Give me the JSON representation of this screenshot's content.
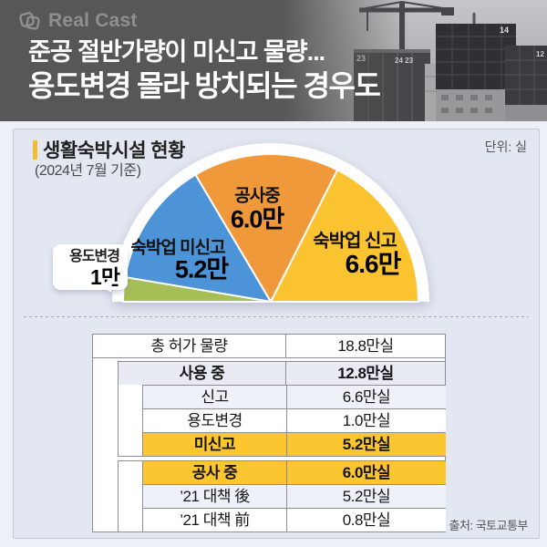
{
  "header": {
    "logo_text": "Real Cast",
    "title_line1": "준공 절반가량이 미신고 물량...",
    "title_line2": "용도변경 몰라 방치되는 경우도",
    "photo_numbers": [
      "23",
      "24 23",
      "14",
      "12"
    ]
  },
  "panel": {
    "title": "생활숙박시설 현황",
    "subtitle": "(2024년 7월 기준)",
    "unit_label": "단위: 실",
    "source": "출처: 국토교통부",
    "accent_color": "#f2bd2f"
  },
  "chart_data": {
    "type": "pie",
    "shape": "semicircle",
    "title": "생활숙박시설 현황 (2024년 7월 기준)",
    "unit": "만실",
    "total": 18.8,
    "legend_position": "labels-on-slices",
    "slices": [
      {
        "label": "숙박업 신고",
        "value": 6.6,
        "value_label": "6.6만",
        "color": "#FBC330"
      },
      {
        "label": "공사중",
        "value": 6.0,
        "value_label": "6.0만",
        "color": "#F0993B"
      },
      {
        "label": "숙박업 미신고",
        "value": 5.2,
        "value_label": "5.2만",
        "color": "#4D93D8"
      },
      {
        "label": "용도변경",
        "value": 1.0,
        "value_label": "1만",
        "color": "#A6BE56"
      }
    ]
  },
  "table": {
    "rows": [
      {
        "label": "총 허가 물량",
        "value": "18.8만실"
      },
      {
        "label": "사용 중",
        "value": "12.8만실"
      },
      {
        "label": "신고",
        "value": "6.6만실"
      },
      {
        "label": "용도변경",
        "value": "1.0만실"
      },
      {
        "label": "미신고",
        "value": "5.2만실"
      },
      {
        "label": "공사 중",
        "value": "6.0만실"
      },
      {
        "label": "’21 대책 後",
        "value": "5.2만실"
      },
      {
        "label": "’21 대책 前",
        "value": "0.8만실"
      }
    ]
  }
}
